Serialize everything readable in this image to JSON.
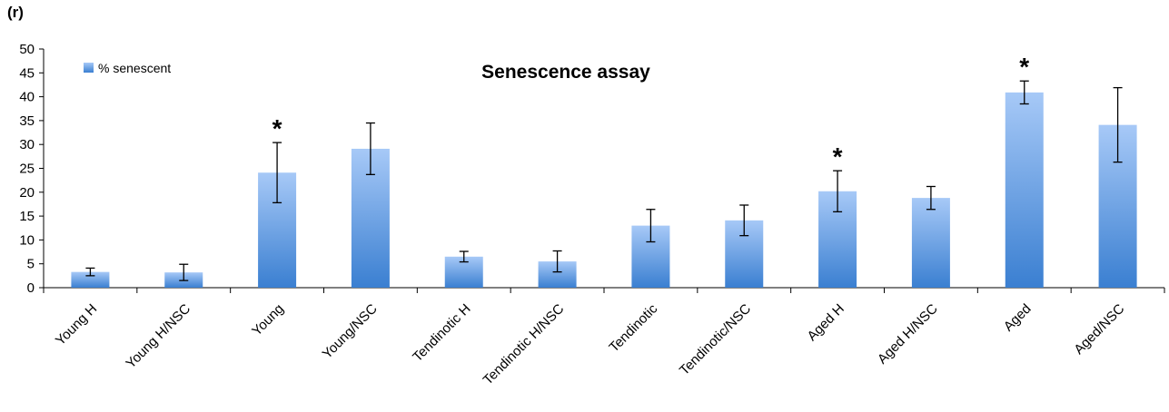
{
  "panel_label": "(r)",
  "chart_data": {
    "type": "bar",
    "title": "Senescence assay",
    "xlabel": "",
    "ylabel": "",
    "ylim": [
      0,
      50
    ],
    "yticks": [
      0,
      5,
      10,
      15,
      20,
      25,
      30,
      35,
      40,
      45,
      50
    ],
    "grid": false,
    "legend_position": "top-left",
    "categories": [
      "Young H",
      "Young H/NSC",
      "Young",
      "Young/NSC",
      "Tendinotic H",
      "Tendinotic H/NSC",
      "Tendinotic",
      "Tendinotic/NSC",
      "Aged H",
      "Aged H/NSC",
      "Aged",
      "Aged/NSC"
    ],
    "series": [
      {
        "name": "% senescent",
        "values": [
          3.3,
          3.2,
          24.1,
          29.1,
          6.5,
          5.5,
          13.0,
          14.1,
          20.2,
          18.8,
          40.9,
          34.1
        ],
        "errors": [
          0.8,
          1.7,
          6.3,
          5.4,
          1.1,
          2.2,
          3.4,
          3.2,
          4.3,
          2.4,
          2.4,
          7.8
        ],
        "significant": [
          false,
          false,
          true,
          false,
          false,
          false,
          false,
          false,
          true,
          false,
          true,
          false
        ]
      }
    ],
    "annotation": "*",
    "colors": {
      "bar_top": "#a7c9f7",
      "bar_bottom": "#3a7fd1",
      "axis": "#000000"
    }
  }
}
